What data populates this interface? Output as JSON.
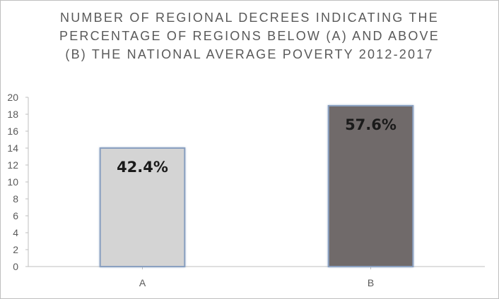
{
  "chart_data": {
    "type": "bar",
    "title_lines": [
      "NUMBER OF REGIONAL DECREES INDICATING THE",
      "PERCENTAGE OF REGIONS BELOW (A) AND ABOVE",
      "(B) THE NATIONAL AVERAGE POVERTY 2012-2017"
    ],
    "categories": [
      "A",
      "B"
    ],
    "values": [
      14,
      19
    ],
    "data_labels": [
      "42.4%",
      "57.6%"
    ],
    "bar_colors": [
      "#d4d4d4",
      "#706b6b"
    ],
    "bar_border_color": "#8aa0c0",
    "ylim": [
      0,
      20
    ],
    "yticks": [
      0,
      2,
      4,
      6,
      8,
      10,
      12,
      14,
      16,
      18,
      20
    ],
    "grid": false,
    "legend": "none"
  }
}
